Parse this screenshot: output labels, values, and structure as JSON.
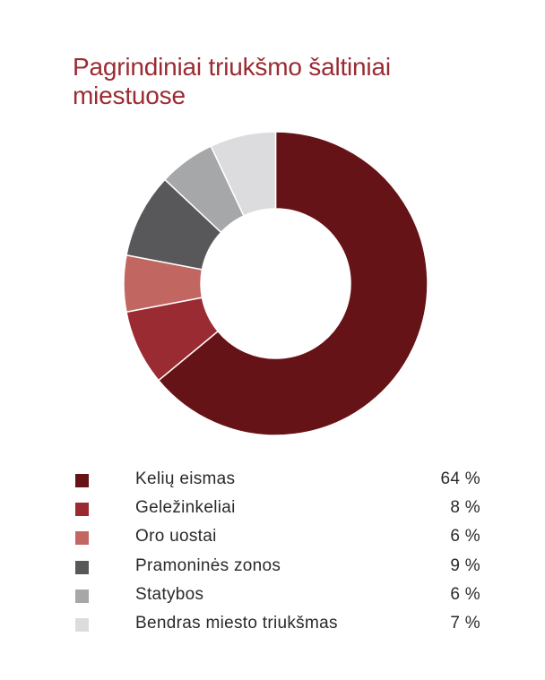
{
  "title": "Pagrindiniai triukšmo šaltiniai miestuose",
  "colors": {
    "title": "#9b2b32",
    "text": "#2a2a2a",
    "background": "#ffffff",
    "separator": "#ffffff"
  },
  "legend": [
    {
      "label": "Kelių eismas",
      "value_label": "64 %",
      "color": "#661317"
    },
    {
      "label": "Geležinkeliai",
      "value_label": "8 %",
      "color": "#9b2b32"
    },
    {
      "label": "Oro uostai",
      "value_label": "6 %",
      "color": "#c26662"
    },
    {
      "label": "Pramoninės zonos",
      "value_label": "9 %",
      "color": "#58585a"
    },
    {
      "label": "Statybos",
      "value_label": "6 %",
      "color": "#a6a7a8"
    },
    {
      "label": "Bendras miesto triukšmas",
      "value_label": "7 %",
      "color": "#dcdcde"
    }
  ],
  "chart_data": {
    "type": "pie",
    "variant": "donut",
    "title": "Pagrindiniai triukšmo šaltiniai miestuose",
    "categories": [
      "Kelių eismas",
      "Geležinkeliai",
      "Oro uostai",
      "Pramoninės zonos",
      "Statybos",
      "Bendras miesto triukšmas"
    ],
    "values": [
      64,
      8,
      6,
      9,
      6,
      7
    ],
    "unit": "%",
    "colors": [
      "#661317",
      "#9b2b32",
      "#c26662",
      "#58585a",
      "#a6a7a8",
      "#dcdcde"
    ],
    "start_angle": "12 o'clock",
    "direction": "clockwise",
    "legend_position": "bottom",
    "grid": false
  }
}
